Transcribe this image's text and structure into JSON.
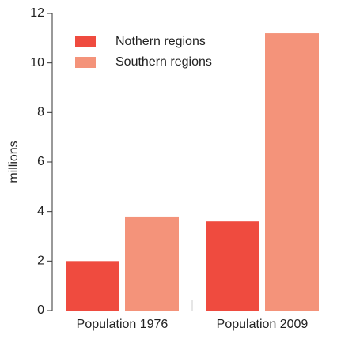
{
  "chart_data": {
    "type": "bar",
    "y_label": "millions",
    "categories": [
      "Population 1976",
      "Population 2009"
    ],
    "series": [
      {
        "name": "Nothern regions",
        "color": "#ef4b3f",
        "values": [
          2.0,
          3.6
        ]
      },
      {
        "name": "Southern regions",
        "color": "#f4937a",
        "values": [
          3.8,
          11.2
        ]
      }
    ],
    "ylim": [
      0,
      12
    ],
    "yticks": [
      0,
      2,
      4,
      6,
      8,
      10,
      12
    ],
    "legend": "upper left"
  }
}
